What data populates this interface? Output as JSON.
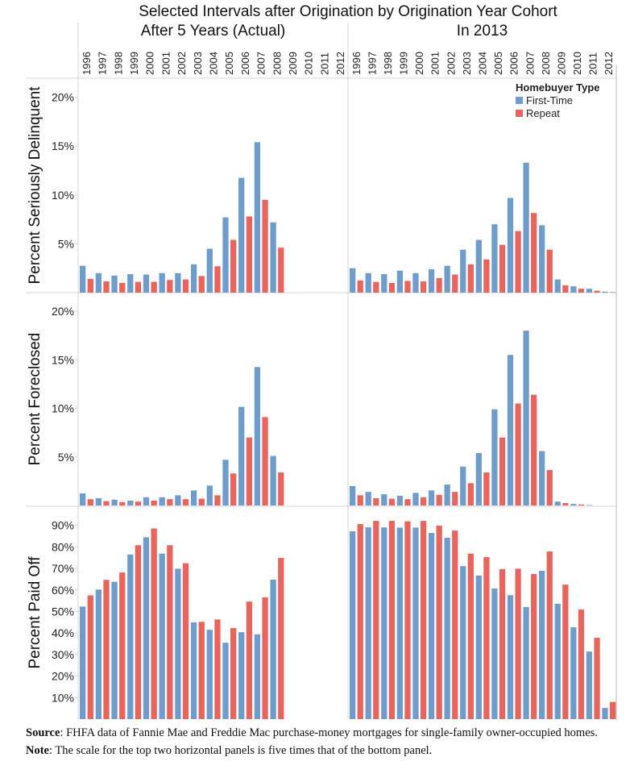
{
  "title": "Selected Intervals after Origination by Origination Year Cohort",
  "column_headers": [
    "After 5 Years (Actual)",
    "In 2013"
  ],
  "legend": {
    "title": "Homebuyer Type",
    "items": [
      {
        "label": "First-Time",
        "color": "#6f9dcb"
      },
      {
        "label": "Repeat",
        "color": "#e8645d"
      }
    ]
  },
  "footer": {
    "source_label": "Source",
    "source_text": ": FHFA data of Fannie Mae and Freddie Mac purchase-money mortgages for single-family owner-occupied homes.",
    "note_label": "Note",
    "note_text": ": The scale for the top two horizontal panels is five times that of the bottom panel."
  },
  "chart_data": {
    "type": "bar",
    "title": "Selected Intervals after Origination by Origination Year Cohort",
    "categories": [
      "1996",
      "1997",
      "1998",
      "1999",
      "2000",
      "2001",
      "2002",
      "2003",
      "2004",
      "2005",
      "2006",
      "2007",
      "2008",
      "2009",
      "2010",
      "2011",
      "2012"
    ],
    "columns": [
      "After 5 Years (Actual)",
      "In 2013"
    ],
    "series_names": [
      "First-Time",
      "Repeat"
    ],
    "grid": false,
    "legend_position": "top-right",
    "rows": [
      {
        "ylabel": "Percent Seriously Delinquent",
        "ylim": [
          0,
          22
        ],
        "yticks": [
          5,
          10,
          15,
          20
        ],
        "tick_labels": [
          "5%",
          "10%",
          "15%",
          "20%"
        ],
        "panels": [
          {
            "column": "After 5 Years (Actual)",
            "series": [
              {
                "name": "First-Time",
                "values": [
                  2.75,
                  2.0,
                  1.75,
                  1.9,
                  1.85,
                  2.0,
                  2.0,
                  2.9,
                  4.5,
                  7.7,
                  11.75,
                  15.4,
                  7.2,
                  null,
                  null,
                  null,
                  null
                ]
              },
              {
                "name": "Repeat",
                "values": [
                  1.4,
                  1.15,
                  1.0,
                  1.1,
                  1.1,
                  1.3,
                  1.35,
                  1.7,
                  2.7,
                  5.4,
                  7.8,
                  9.5,
                  4.6,
                  null,
                  null,
                  null,
                  null
                ]
              }
            ]
          },
          {
            "column": "In 2013",
            "series": [
              {
                "name": "First-Time",
                "values": [
                  2.5,
                  2.0,
                  1.9,
                  2.25,
                  2.0,
                  2.4,
                  2.75,
                  4.4,
                  5.4,
                  7.0,
                  9.7,
                  13.3,
                  6.9,
                  1.35,
                  0.65,
                  0.4,
                  0.1
                ]
              },
              {
                "name": "Repeat",
                "values": [
                  1.25,
                  1.1,
                  1.0,
                  1.2,
                  1.15,
                  1.5,
                  1.85,
                  2.9,
                  3.4,
                  4.9,
                  6.3,
                  8.15,
                  4.4,
                  0.75,
                  0.4,
                  0.2,
                  0.05
                ]
              }
            ]
          }
        ]
      },
      {
        "ylabel": "Percent Foreclosed",
        "ylim": [
          0,
          22
        ],
        "yticks": [
          5,
          10,
          15,
          20
        ],
        "tick_labels": [
          "5%",
          "10%",
          "15%",
          "20%"
        ],
        "panels": [
          {
            "column": "After 5 Years (Actual)",
            "series": [
              {
                "name": "First-Time",
                "values": [
                  1.25,
                  0.75,
                  0.6,
                  0.5,
                  0.85,
                  0.85,
                  1.05,
                  1.55,
                  2.05,
                  4.7,
                  10.15,
                  14.25,
                  5.1,
                  null,
                  null,
                  null,
                  null
                ]
              },
              {
                "name": "Repeat",
                "values": [
                  0.65,
                  0.45,
                  0.35,
                  0.4,
                  0.5,
                  0.65,
                  0.65,
                  0.7,
                  1.05,
                  3.3,
                  7.0,
                  9.1,
                  3.4,
                  null,
                  null,
                  null,
                  null
                ]
              }
            ]
          },
          {
            "column": "In 2013",
            "series": [
              {
                "name": "First-Time",
                "values": [
                  2.0,
                  1.4,
                  1.15,
                  1.0,
                  1.3,
                  1.55,
                  2.15,
                  4.0,
                  5.4,
                  9.9,
                  15.5,
                  18.0,
                  5.6,
                  0.4,
                  0.15,
                  0.05,
                  0.0
                ]
              },
              {
                "name": "Repeat",
                "values": [
                  1.05,
                  0.75,
                  0.7,
                  0.65,
                  0.85,
                  1.1,
                  1.4,
                  2.3,
                  3.4,
                  7.0,
                  10.5,
                  11.4,
                  3.65,
                  0.25,
                  0.1,
                  0.0,
                  0.0
                ]
              }
            ]
          }
        ]
      },
      {
        "ylabel": "Percent Paid Off",
        "ylim": [
          0,
          98
        ],
        "yticks": [
          10,
          20,
          30,
          40,
          50,
          60,
          70,
          80,
          90
        ],
        "tick_labels": [
          "10%",
          "20%",
          "30%",
          "40%",
          "50%",
          "60%",
          "70%",
          "80%",
          "90%"
        ],
        "panels": [
          {
            "column": "After 5 Years (Actual)",
            "series": [
              {
                "name": "First-Time",
                "values": [
                  52.3,
                  60.2,
                  63.8,
                  76.5,
                  84.5,
                  76.9,
                  69.9,
                  45.0,
                  41.5,
                  35.5,
                  40.4,
                  39.4,
                  64.8,
                  null,
                  null,
                  null,
                  null
                ]
              },
              {
                "name": "Repeat",
                "values": [
                  57.5,
                  64.7,
                  68.1,
                  80.8,
                  88.6,
                  80.8,
                  72.4,
                  45.2,
                  46.3,
                  42.3,
                  54.6,
                  56.6,
                  74.9,
                  null,
                  null,
                  null,
                  null
                ]
              }
            ]
          },
          {
            "column": "In 2013",
            "series": [
              {
                "name": "First-Time",
                "values": [
                  87.3,
                  89.1,
                  89.1,
                  89.0,
                  89.0,
                  86.5,
                  84.3,
                  71.1,
                  66.7,
                  60.7,
                  57.6,
                  52.1,
                  68.9,
                  53.6,
                  42.7,
                  31.4,
                  5.2
                ]
              },
              {
                "name": "Repeat",
                "values": [
                  90.6,
                  92.1,
                  92.1,
                  91.9,
                  92.1,
                  89.9,
                  87.6,
                  76.9,
                  75.3,
                  69.7,
                  69.9,
                  67.4,
                  77.9,
                  62.5,
                  50.9,
                  37.8,
                  8.0
                ]
              }
            ]
          }
        ]
      }
    ]
  }
}
